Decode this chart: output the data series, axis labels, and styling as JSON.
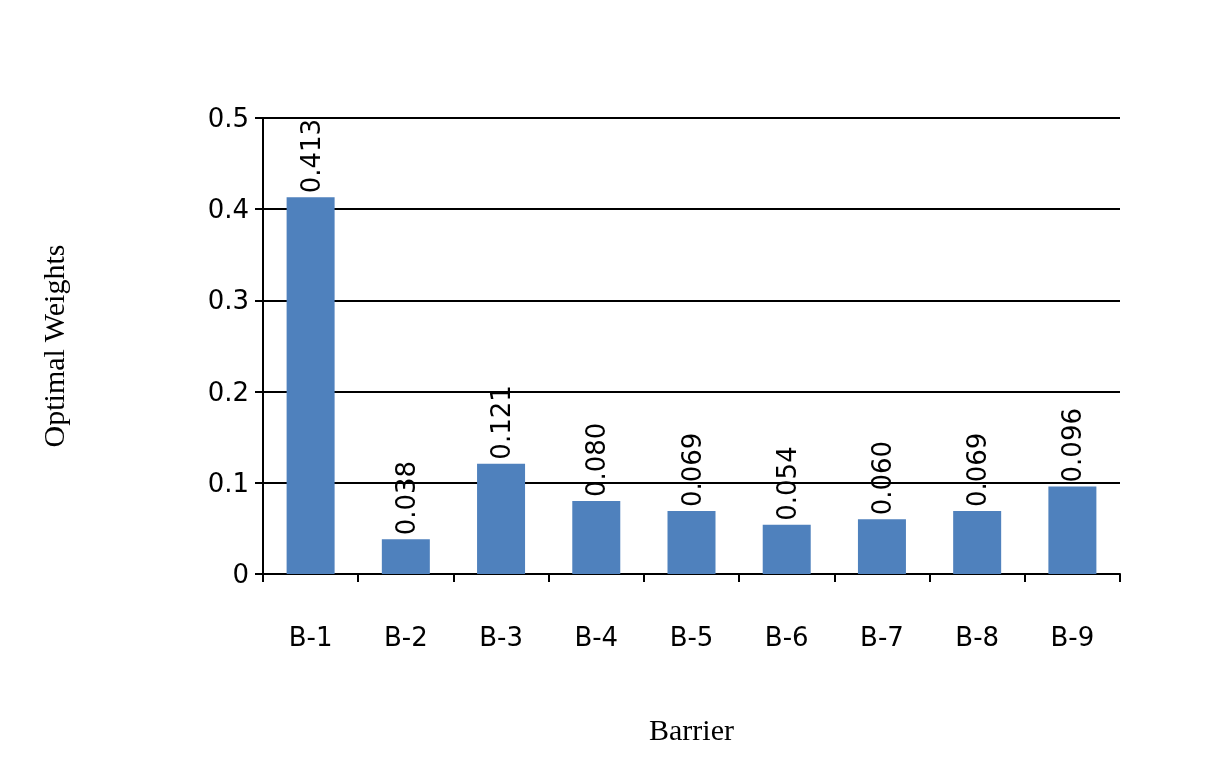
{
  "chart_data": {
    "type": "bar",
    "xlabel": "Barrier",
    "ylabel": "Optimal Weights",
    "categories": [
      "B-1",
      "B-2",
      "B-3",
      "B-4",
      "B-5",
      "B-6",
      "B-7",
      "B-8",
      "B-9"
    ],
    "values": [
      0.413,
      0.038,
      0.121,
      0.08,
      0.069,
      0.054,
      0.06,
      0.069,
      0.096
    ],
    "value_labels": [
      "0.413",
      "0.038",
      "0.121",
      "0.080",
      "0.069",
      "0.054",
      "0.060",
      "0.069",
      "0.096"
    ],
    "color": "#4f81bd",
    "ylim": [
      0,
      0.5
    ],
    "yticks": [
      0,
      0.1,
      0.2,
      0.3,
      0.4,
      0.5
    ],
    "grid": "y"
  }
}
